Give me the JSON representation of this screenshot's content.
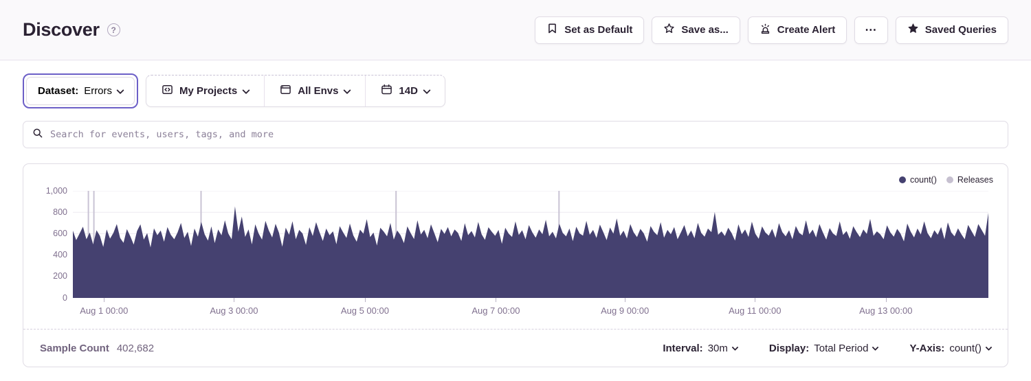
{
  "header": {
    "title": "Discover",
    "help_glyph": "?"
  },
  "actions": {
    "set_default": "Set as Default",
    "save_as": "Save as...",
    "create_alert": "Create Alert",
    "more": "⋯",
    "saved_queries": "Saved Queries"
  },
  "filters": {
    "dataset_label": "Dataset:",
    "dataset_value": "Errors",
    "projects": "My Projects",
    "environments": "All Envs",
    "date_range": "14D"
  },
  "search": {
    "placeholder": "Search for events, users, tags, and more"
  },
  "colors": {
    "accent": "#6C5FC7",
    "chart_fill": "#454170",
    "release_line": "#C9C3D4",
    "grid_line": "#EDE9F1",
    "axis_text": "#80708F"
  },
  "chart_data": {
    "type": "area",
    "title": "",
    "xlabel": "",
    "ylabel": "",
    "ylim": [
      0,
      1000
    ],
    "yticks": [
      0,
      200,
      400,
      600,
      800,
      1000
    ],
    "ytick_labels": [
      "0",
      "200",
      "400",
      "600",
      "800",
      "1,000"
    ],
    "xticks": {
      "labels": [
        "Aug 1 00:00",
        "Aug 3 00:00",
        "Aug 5 00:00",
        "Aug 7 00:00",
        "Aug 9 00:00",
        "Aug 11 00:00",
        "Aug 13 00:00"
      ],
      "positions": [
        0.034,
        0.176,
        0.319,
        0.462,
        0.603,
        0.745,
        0.888
      ]
    },
    "grid": "horizontal",
    "legend_position": "top-right",
    "legend": [
      {
        "name": "count()",
        "color": "#454170"
      },
      {
        "name": "Releases",
        "color": "#C6C0D0"
      }
    ],
    "releases_x": [
      0.017,
      0.023,
      0.14,
      0.353,
      0.531
    ],
    "series": [
      {
        "name": "count()",
        "values": [
          628,
          540,
          602,
          665,
          548,
          610,
          500,
          632,
          580,
          476,
          640,
          554,
          608,
          690,
          560,
          515,
          642,
          575,
          498,
          625,
          688,
          545,
          605,
          472,
          650,
          586,
          630,
          525,
          662,
          590,
          548,
          612,
          700,
          560,
          618,
          486,
          648,
          572,
          710,
          595,
          535,
          668,
          512,
          640,
          585,
          725,
          602,
          548,
          855,
          618,
          760,
          570,
          640,
          500,
          688,
          602,
          545,
          720,
          630,
          565,
          692,
          610,
          478,
          655,
          590,
          716,
          548,
          635,
          602,
          495,
          660,
          578,
          708,
          615,
          532,
          648,
          586,
          622,
          502,
          670,
          612,
          560,
          695,
          584,
          525,
          638,
          600,
          735,
          568,
          610,
          490,
          655,
          620,
          575,
          700,
          545,
          630,
          586,
          512,
          668,
          605,
          550,
          725,
          592,
          636,
          558,
          688,
          605,
          520,
          645,
          598,
          662,
          575,
          640,
          608,
          532,
          698,
          586,
          625,
          565,
          710,
          595,
          542,
          660,
          618,
          580,
          635,
          505,
          655,
          600,
          570,
          715,
          588,
          632,
          548,
          680,
          612,
          562,
          640,
          595,
          730,
          575,
          618,
          556,
          692,
          608,
          575,
          648,
          530,
          665,
          602,
          582,
          720,
          590,
          635,
          560,
          685,
          615,
          540,
          658,
          600,
          742,
          580,
          628,
          555,
          690,
          612,
          568,
          645,
          602,
          525,
          672,
          618,
          586,
          708,
          562,
          635,
          595,
          662,
          548,
          612,
          680,
          575,
          630,
          558,
          700,
          608,
          572,
          648,
          615,
          802,
          590,
          622,
          578,
          655,
          605,
          535,
          688,
          595,
          640,
          570,
          712,
          600,
          552,
          668,
          610,
          582,
          645,
          560,
          698,
          615,
          575,
          632,
          548,
          672,
          608,
          585,
          725,
          595,
          638,
          565,
          690,
          612,
          545,
          652,
          602,
          578,
          715,
          588,
          625,
          552,
          670,
          615,
          568,
          640,
          598,
          738,
          580,
          622,
          595,
          548,
          678,
          610,
          572,
          645,
          600,
          528,
          695,
          618,
          565,
          648,
          592,
          715,
          605,
          558,
          632,
          590,
          662,
          548,
          705,
          612,
          575,
          650,
          595,
          548,
          682,
          625,
          570,
          690,
          635,
          580,
          795
        ]
      }
    ]
  },
  "panel_footer": {
    "sample_label": "Sample Count",
    "sample_value": "402,682",
    "interval_label": "Interval:",
    "interval_value": "30m",
    "display_label": "Display:",
    "display_value": "Total Period",
    "yaxis_label": "Y-Axis:",
    "yaxis_value": "count()"
  }
}
